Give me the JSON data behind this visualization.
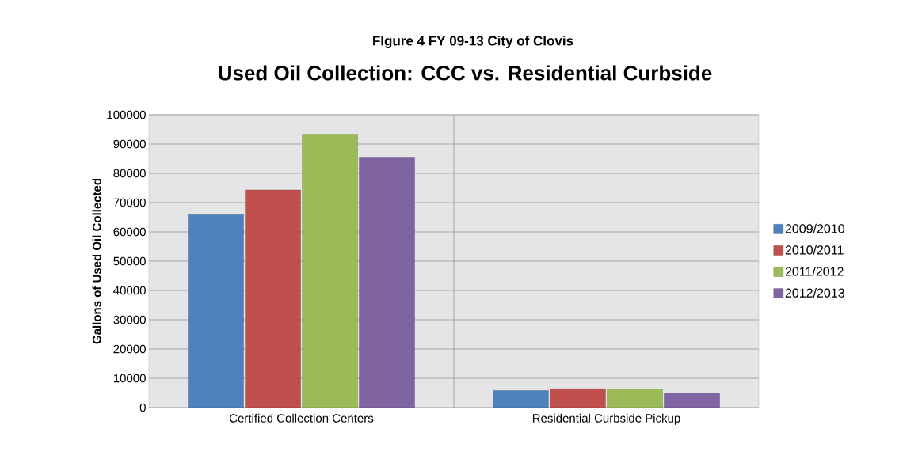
{
  "chart_data": {
    "type": "bar",
    "title": "FIgure 4 FY 09-13 City of Clovis",
    "subtitle": "Used Oil Collection: CCC vs. Residential Curbside",
    "ylabel": "Gallons of Used Oil Collected",
    "categories": [
      "Certified Collection Centers",
      "Residential Curbside Pickup"
    ],
    "series": [
      {
        "name": "2009/2010",
        "color": "#4f81bd",
        "values": [
          65900,
          5800
        ]
      },
      {
        "name": "2010/2011",
        "color": "#c0504d",
        "values": [
          74300,
          6400
        ]
      },
      {
        "name": "2011/2012",
        "color": "#9bbb59",
        "values": [
          93400,
          6300
        ]
      },
      {
        "name": "2012/2013",
        "color": "#8064a2",
        "values": [
          85300,
          5000
        ]
      }
    ],
    "ylim": [
      0,
      100000
    ],
    "yticks": [
      0,
      10000,
      20000,
      30000,
      40000,
      50000,
      60000,
      70000,
      80000,
      90000,
      100000
    ],
    "grid": true,
    "legend": "right"
  }
}
